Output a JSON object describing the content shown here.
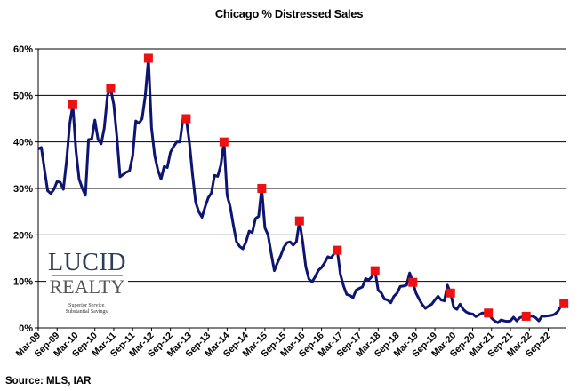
{
  "chart_data": {
    "type": "line",
    "title": "Chicago % Distressed Sales",
    "xlabel": "",
    "ylabel": "",
    "x_start": "2009-03",
    "x_end": "2023-02",
    "x_frequency": "monthly",
    "x_tick_labels": [
      "Mar-09",
      "Sep-09",
      "Mar-10",
      "Sep-10",
      "Mar-11",
      "Sep-11",
      "Mar-12",
      "Sep-12",
      "Mar-13",
      "Sep-13",
      "Mar-14",
      "Sep-14",
      "Mar-15",
      "Sep-15",
      "Mar-16",
      "Sep-16",
      "Mar-17",
      "Sep-17",
      "Mar-18",
      "Sep-18",
      "Mar-19",
      "Sep-19",
      "Mar-20",
      "Sep-20",
      "Mar-21",
      "Sep-21",
      "Mar-22",
      "Sep-22"
    ],
    "y_tick_labels": [
      "0%",
      "10%",
      "20%",
      "30%",
      "40%",
      "50%",
      "60%"
    ],
    "ylim": [
      0,
      60
    ],
    "y_unit": "%",
    "grid": "horizontal",
    "line_color": "#0d1570",
    "marker_color": "#ee1111",
    "series": [
      {
        "values": [
          38.5,
          38.8,
          34,
          29.5,
          28.9,
          29.8,
          31.5,
          31.3,
          29.8,
          36,
          43.8,
          48,
          38,
          32,
          30,
          28.5,
          40.5,
          40.6,
          44.7,
          40.5,
          39.6,
          43,
          50,
          51.5,
          48,
          41,
          32.5,
          33,
          33.5,
          33.8,
          37,
          44.5,
          44,
          45,
          50,
          58,
          43,
          37,
          34,
          32,
          34.7,
          34.5,
          37.8,
          39,
          40,
          40,
          45,
          45,
          40,
          33,
          27,
          25,
          23.8,
          26,
          28,
          29,
          32.8,
          32.6,
          35,
          40,
          28.5,
          26,
          22,
          18.5,
          17.5,
          17,
          18.5,
          20.8,
          20.5,
          23.5,
          24,
          30,
          21.5,
          20,
          16,
          12.3,
          14,
          15.5,
          17.3,
          18.3,
          18.5,
          17.8,
          18.5,
          23,
          18.5,
          13.1,
          10.5,
          9.9,
          11,
          12.4,
          13,
          14,
          15.3,
          15,
          16,
          16.7,
          11.5,
          9,
          7.2,
          7,
          6.5,
          8.1,
          8.5,
          8.8,
          10.6,
          10.3,
          11,
          12.3,
          8.1,
          7.5,
          6.2,
          6,
          5.4,
          6.8,
          7.5,
          8.9,
          9,
          9.2,
          11.8,
          9.8,
          7.5,
          6.2,
          5,
          4.2,
          4.7,
          5.1,
          6,
          6.8,
          6,
          5.8,
          9.2,
          7.5,
          4.4,
          4,
          5.1,
          4,
          3.4,
          3.1,
          3,
          2.4,
          2.8,
          3.2,
          3.2,
          3.2,
          2.1,
          1.5,
          1.1,
          1.7,
          1.5,
          1.4,
          1.5,
          2.3,
          1.5,
          2.2,
          2.4,
          2.5,
          2.5,
          2.5,
          2.2,
          1.5,
          2.5,
          2.5,
          2.6,
          2.7,
          2.9,
          3.5,
          4.6,
          5.2
        ]
      }
    ],
    "highlighted_points": {
      "dates": [
        "Feb-10",
        "Feb-11",
        "Feb-12",
        "Feb-13",
        "Feb-14",
        "Feb-15",
        "Feb-16",
        "Feb-17",
        "Feb-18",
        "Feb-19",
        "Feb-20",
        "Feb-21",
        "Feb-22",
        "Feb-23"
      ],
      "values": [
        48,
        51.5,
        58,
        45,
        40,
        30,
        23,
        16.7,
        12.3,
        9.8,
        7.5,
        3.2,
        2.5,
        5.2
      ]
    }
  },
  "source": "Source: MLS, IAR",
  "logo": {
    "line1": "LUCID",
    "line2": "REALTY",
    "tagline1": "Superior Service,",
    "tagline2": "Substantial Savings."
  }
}
